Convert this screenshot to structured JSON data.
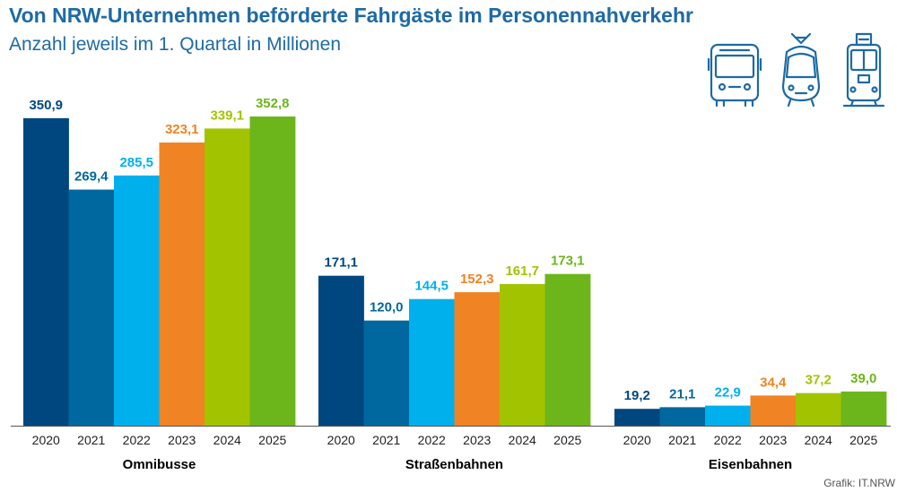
{
  "title": "Von NRW-Unternehmen beförderte Fahrgäste im Personennahverkehr",
  "subtitle": "Anzahl jeweils im 1. Quartal in Millionen",
  "credit": "Grafik: IT.NRW",
  "icons": [
    "bus-icon",
    "tram-icon",
    "train-icon"
  ],
  "colors": {
    "2020": "#00477f",
    "2021": "#00689f",
    "2022": "#00b0ed",
    "2023": "#f08323",
    "2024": "#a2c400",
    "2025": "#6cb61b",
    "icon": "#1d6aa5"
  },
  "chart_data": {
    "type": "bar",
    "title": "Von NRW-Unternehmen beförderte Fahrgäste im Personennahverkehr",
    "subtitle": "Anzahl jeweils im 1. Quartal in Millionen",
    "categories": [
      "Omnibusse",
      "Straßenbahnen",
      "Eisenbahnen"
    ],
    "series": [
      {
        "name": "2020",
        "values": [
          350.9,
          171.1,
          19.2
        ],
        "labels": [
          "350,9",
          "171,1",
          "19,2"
        ]
      },
      {
        "name": "2021",
        "values": [
          269.4,
          120.0,
          21.1
        ],
        "labels": [
          "269,4",
          "120,0",
          "21,1"
        ]
      },
      {
        "name": "2022",
        "values": [
          285.5,
          144.5,
          22.9
        ],
        "labels": [
          "285,5",
          "144,5",
          "22,9"
        ]
      },
      {
        "name": "2023",
        "values": [
          323.1,
          152.3,
          34.4
        ],
        "labels": [
          "323,1",
          "152,3",
          "34,4"
        ]
      },
      {
        "name": "2024",
        "values": [
          339.1,
          161.7,
          37.2
        ],
        "labels": [
          "339,1",
          "161,7",
          "37,2"
        ]
      },
      {
        "name": "2025",
        "values": [
          352.8,
          173.1,
          39.0
        ],
        "labels": [
          "352,8",
          "173,1",
          "39,0"
        ]
      }
    ],
    "ylim": [
      0,
      352.8
    ],
    "xlabel": "",
    "ylabel": "",
    "grid": false,
    "legend": "none"
  }
}
